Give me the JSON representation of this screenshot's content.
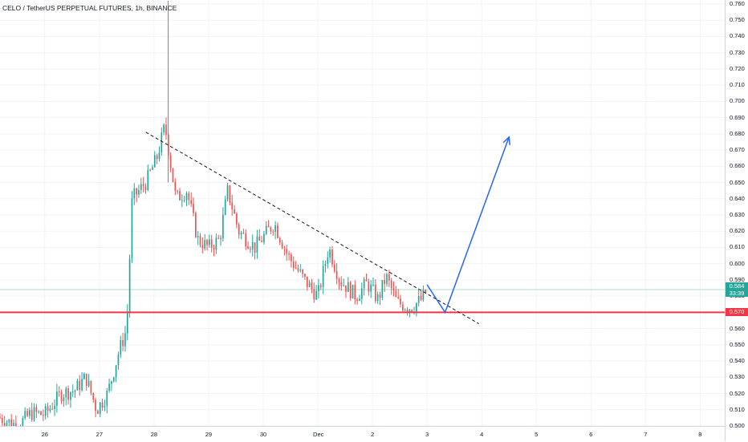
{
  "title": {
    "symbol": "CELO / TetherUS PERPETUAL FUTURES, 1h, BINANCE"
  },
  "colors": {
    "up": "#26a69a",
    "down": "#ef5350",
    "support": "#f23645",
    "projection": "#2962ff",
    "trendline": "#131722",
    "current": "#26a69a"
  },
  "badges": {
    "current_price": "0.584",
    "countdown": "33:39",
    "support_price": "0.570"
  },
  "chart_data": {
    "type": "candlestick",
    "title": "CELO / TetherUS PERPETUAL FUTURES, 1h, BINANCE",
    "xlabel": "",
    "ylabel": "",
    "ylim": [
      0.5,
      0.76
    ],
    "y_ticks": [
      "0.500",
      "0.510",
      "0.520",
      "0.530",
      "0.540",
      "0.550",
      "0.560",
      "0.570",
      "0.580",
      "0.590",
      "0.600",
      "0.610",
      "0.620",
      "0.630",
      "0.640",
      "0.650",
      "0.660",
      "0.670",
      "0.680",
      "0.690",
      "0.700",
      "0.710",
      "0.720",
      "0.730",
      "0.740",
      "0.750",
      "0.760"
    ],
    "x_ticks": [
      "26",
      "27",
      "28",
      "29",
      "30",
      "Dec",
      "2",
      "3",
      "4",
      "5",
      "6",
      "7",
      "8"
    ],
    "x_tick_days": [
      26,
      27,
      28,
      29,
      30,
      31,
      32,
      33,
      34,
      35,
      36,
      37,
      38
    ],
    "xlim_days": [
      25.18,
      38.45
    ],
    "price_path": [
      [
        25.18,
        0.505
      ],
      [
        25.5,
        0.5
      ],
      [
        25.75,
        0.508
      ],
      [
        26.0,
        0.507
      ],
      [
        26.3,
        0.52
      ],
      [
        26.55,
        0.522
      ],
      [
        26.75,
        0.53
      ],
      [
        26.95,
        0.51
      ],
      [
        27.15,
        0.52
      ],
      [
        27.35,
        0.545
      ],
      [
        27.5,
        0.56
      ],
      [
        27.6,
        0.64
      ],
      [
        27.85,
        0.65
      ],
      [
        28.05,
        0.665
      ],
      [
        28.2,
        0.685
      ],
      [
        28.4,
        0.64
      ],
      [
        28.6,
        0.645
      ],
      [
        28.8,
        0.615
      ],
      [
        29.0,
        0.61
      ],
      [
        29.2,
        0.615
      ],
      [
        29.35,
        0.645
      ],
      [
        29.55,
        0.62
      ],
      [
        29.85,
        0.61
      ],
      [
        30.2,
        0.625
      ],
      [
        30.45,
        0.605
      ],
      [
        30.75,
        0.59
      ],
      [
        31.0,
        0.58
      ],
      [
        31.2,
        0.61
      ],
      [
        31.4,
        0.59
      ],
      [
        31.7,
        0.58
      ],
      [
        31.9,
        0.588
      ],
      [
        32.1,
        0.578
      ],
      [
        32.25,
        0.592
      ],
      [
        32.45,
        0.576
      ],
      [
        32.7,
        0.573
      ],
      [
        32.9,
        0.578
      ],
      [
        33.0,
        0.584
      ]
    ],
    "spike": {
      "day": 28.26,
      "high": 0.762,
      "low": 0.65
    },
    "trendline": [
      [
        27.85,
        0.681
      ],
      [
        33.95,
        0.563
      ]
    ],
    "support_level": 0.57,
    "current_price": 0.584,
    "projection": [
      [
        33.0,
        0.587
      ],
      [
        33.33,
        0.57
      ],
      [
        34.5,
        0.678
      ]
    ]
  }
}
